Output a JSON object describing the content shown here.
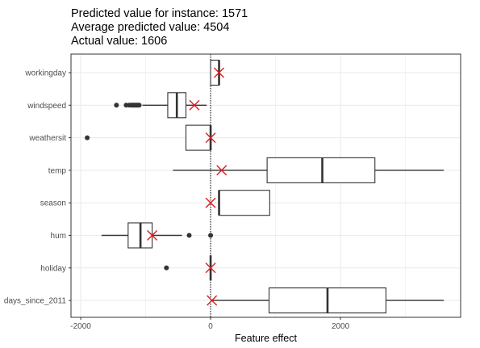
{
  "chart_data": {
    "type": "boxplot",
    "title_lines": [
      "Predicted value for instance: 1571",
      "Average predicted value: 4504",
      "Actual value: 1606"
    ],
    "xlabel": "Feature effect",
    "ylabel": "",
    "xlim": [
      -2150,
      3850
    ],
    "xticks": [
      -2000,
      0,
      2000
    ],
    "xtick_labels": [
      "-2000",
      "0",
      "2000"
    ],
    "grid": true,
    "reference_line_x": 0,
    "colors": {
      "box": "#333333",
      "marker": "#e31a1c",
      "grid": "#ebebeb",
      "panel_border": "#333333"
    },
    "categories": [
      "workingday",
      "windspeed",
      "weathersit",
      "temp",
      "season",
      "hum",
      "holiday",
      "days_since_2011"
    ],
    "boxes": [
      {
        "category": "workingday",
        "whisker_low": 0,
        "q1": 0,
        "median": 130,
        "q3": 130,
        "whisker_high": 130,
        "outliers": [],
        "instance_effect": 130
      },
      {
        "category": "windspeed",
        "whisker_low": -1050,
        "q1": -660,
        "median": -520,
        "q3": -380,
        "whisker_high": -60,
        "outliers": [
          -1450,
          -1300,
          -1250,
          -1220,
          -1200,
          -1180,
          -1160,
          -1140,
          -1120,
          -1100
        ],
        "instance_effect": -250
      },
      {
        "category": "weathersit",
        "whisker_low": -380,
        "q1": -380,
        "median": 0,
        "q3": 0,
        "whisker_high": 0,
        "outliers": [
          -1900
        ],
        "instance_effect": 0
      },
      {
        "category": "temp",
        "whisker_low": -580,
        "q1": 870,
        "median": 1720,
        "q3": 2530,
        "whisker_high": 3590,
        "outliers": [],
        "instance_effect": 170
      },
      {
        "category": "season",
        "whisker_low": 130,
        "q1": 130,
        "median": 130,
        "q3": 910,
        "whisker_high": 910,
        "outliers": [],
        "instance_effect": 0
      },
      {
        "category": "hum",
        "whisker_low": -1680,
        "q1": -1270,
        "median": -1080,
        "q3": -900,
        "whisker_high": -440,
        "outliers": [
          -330,
          0
        ],
        "instance_effect": -900
      },
      {
        "category": "holiday",
        "whisker_low": 0,
        "q1": 0,
        "median": 0,
        "q3": 0,
        "whisker_high": 0,
        "outliers": [
          -680
        ],
        "instance_effect": 0
      },
      {
        "category": "days_since_2011",
        "whisker_low": 0,
        "q1": 900,
        "median": 1800,
        "q3": 2700,
        "whisker_high": 3590,
        "outliers": [],
        "instance_effect": 20
      }
    ]
  }
}
